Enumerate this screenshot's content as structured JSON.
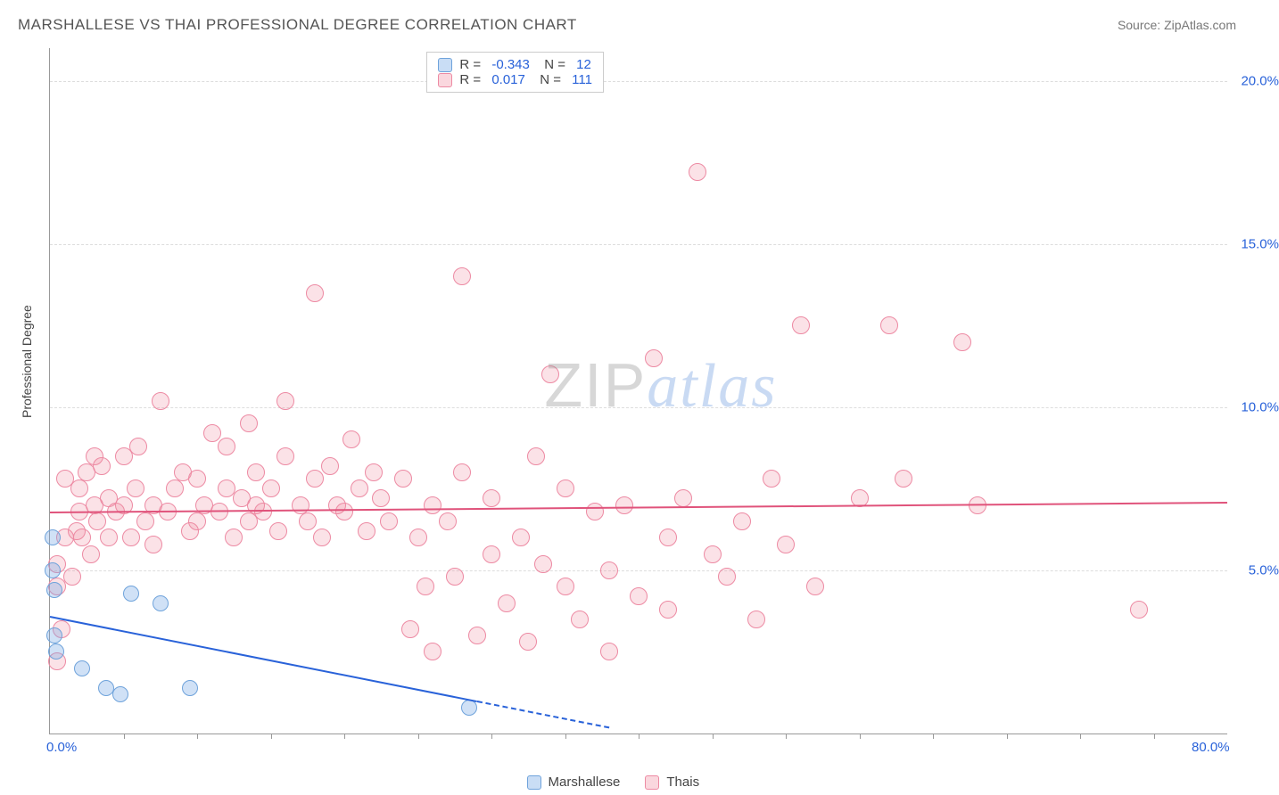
{
  "header": {
    "title": "MARSHALLESE VS THAI PROFESSIONAL DEGREE CORRELATION CHART",
    "source": "Source: ZipAtlas.com"
  },
  "chart": {
    "type": "scatter",
    "y_axis_label": "Professional Degree",
    "xlim": [
      0,
      80
    ],
    "ylim": [
      0,
      21
    ],
    "xtick_labels": [
      "0.0%",
      "80.0%"
    ],
    "xtick_positions_pct": [
      0,
      100
    ],
    "xtick_minor_pct": [
      6.25,
      12.5,
      18.75,
      25,
      31.25,
      37.5,
      43.75,
      50,
      56.25,
      62.5,
      68.75,
      75,
      81.25,
      87.5,
      93.75
    ],
    "ytick_labels": [
      "5.0%",
      "10.0%",
      "15.0%",
      "20.0%"
    ],
    "ytick_values": [
      5,
      10,
      15,
      20
    ],
    "grid_color": "#dddddd",
    "background_color": "#ffffff",
    "series": {
      "marshallese": {
        "label": "Marshallese",
        "color_fill": "rgba(120,170,230,0.35)",
        "color_stroke": "#6fa3db",
        "marker_radius": 9,
        "R": "-0.343",
        "N": "12",
        "trend": {
          "x1": 0,
          "y1": 3.6,
          "x2": 38,
          "y2": 0.2,
          "color": "#2962d9",
          "dash_after_x": 29
        },
        "points": [
          {
            "x": 0.2,
            "y": 6.0
          },
          {
            "x": 0.2,
            "y": 5.0
          },
          {
            "x": 0.3,
            "y": 4.4
          },
          {
            "x": 0.3,
            "y": 3.0
          },
          {
            "x": 2.2,
            "y": 2.0
          },
          {
            "x": 3.8,
            "y": 1.4
          },
          {
            "x": 4.8,
            "y": 1.2
          },
          {
            "x": 5.5,
            "y": 4.3
          },
          {
            "x": 7.5,
            "y": 4.0
          },
          {
            "x": 9.5,
            "y": 1.4
          },
          {
            "x": 0.4,
            "y": 2.5
          },
          {
            "x": 28.5,
            "y": 0.8
          }
        ]
      },
      "thais": {
        "label": "Thais",
        "color_fill": "rgba(240,140,160,0.25)",
        "color_stroke": "#ed8aa3",
        "marker_radius": 10,
        "R": "0.017",
        "N": "111",
        "trend": {
          "x1": 0,
          "y1": 6.8,
          "x2": 80,
          "y2": 7.1,
          "color": "#e0537b"
        },
        "points": [
          {
            "x": 0.5,
            "y": 4.5
          },
          {
            "x": 0.5,
            "y": 5.2
          },
          {
            "x": 0.8,
            "y": 3.2
          },
          {
            "x": 1,
            "y": 6.0
          },
          {
            "x": 1,
            "y": 7.8
          },
          {
            "x": 1.5,
            "y": 4.8
          },
          {
            "x": 1.8,
            "y": 6.2
          },
          {
            "x": 2,
            "y": 7.5
          },
          {
            "x": 2,
            "y": 6.8
          },
          {
            "x": 2.2,
            "y": 6.0
          },
          {
            "x": 2.5,
            "y": 8.0
          },
          {
            "x": 2.8,
            "y": 5.5
          },
          {
            "x": 3,
            "y": 7.0
          },
          {
            "x": 3,
            "y": 8.5
          },
          {
            "x": 3.2,
            "y": 6.5
          },
          {
            "x": 3.5,
            "y": 8.2
          },
          {
            "x": 4,
            "y": 7.2
          },
          {
            "x": 4,
            "y": 6.0
          },
          {
            "x": 4.5,
            "y": 6.8
          },
          {
            "x": 5,
            "y": 8.5
          },
          {
            "x": 5,
            "y": 7.0
          },
          {
            "x": 5.5,
            "y": 6.0
          },
          {
            "x": 5.8,
            "y": 7.5
          },
          {
            "x": 6,
            "y": 8.8
          },
          {
            "x": 6.5,
            "y": 6.5
          },
          {
            "x": 7,
            "y": 7.0
          },
          {
            "x": 7,
            "y": 5.8
          },
          {
            "x": 7.5,
            "y": 10.2
          },
          {
            "x": 8,
            "y": 6.8
          },
          {
            "x": 8.5,
            "y": 7.5
          },
          {
            "x": 9,
            "y": 8.0
          },
          {
            "x": 9.5,
            "y": 6.2
          },
          {
            "x": 10,
            "y": 7.8
          },
          {
            "x": 10,
            "y": 6.5
          },
          {
            "x": 10.5,
            "y": 7.0
          },
          {
            "x": 11,
            "y": 9.2
          },
          {
            "x": 11.5,
            "y": 6.8
          },
          {
            "x": 12,
            "y": 7.5
          },
          {
            "x": 12,
            "y": 8.8
          },
          {
            "x": 12.5,
            "y": 6.0
          },
          {
            "x": 13,
            "y": 7.2
          },
          {
            "x": 13.5,
            "y": 6.5
          },
          {
            "x": 13.5,
            "y": 9.5
          },
          {
            "x": 14,
            "y": 8.0
          },
          {
            "x": 14,
            "y": 7.0
          },
          {
            "x": 14.5,
            "y": 6.8
          },
          {
            "x": 15,
            "y": 7.5
          },
          {
            "x": 15.5,
            "y": 6.2
          },
          {
            "x": 16,
            "y": 8.5
          },
          {
            "x": 16,
            "y": 10.2
          },
          {
            "x": 17,
            "y": 7.0
          },
          {
            "x": 17.5,
            "y": 6.5
          },
          {
            "x": 18,
            "y": 7.8
          },
          {
            "x": 18,
            "y": 13.5
          },
          {
            "x": 18.5,
            "y": 6.0
          },
          {
            "x": 19,
            "y": 8.2
          },
          {
            "x": 19.5,
            "y": 7.0
          },
          {
            "x": 20,
            "y": 6.8
          },
          {
            "x": 20.5,
            "y": 9.0
          },
          {
            "x": 21,
            "y": 7.5
          },
          {
            "x": 21.5,
            "y": 6.2
          },
          {
            "x": 22,
            "y": 8.0
          },
          {
            "x": 22.5,
            "y": 7.2
          },
          {
            "x": 23,
            "y": 6.5
          },
          {
            "x": 24,
            "y": 7.8
          },
          {
            "x": 24.5,
            "y": 3.2
          },
          {
            "x": 25,
            "y": 6.0
          },
          {
            "x": 25.5,
            "y": 4.5
          },
          {
            "x": 26,
            "y": 7.0
          },
          {
            "x": 26,
            "y": 2.5
          },
          {
            "x": 27,
            "y": 6.5
          },
          {
            "x": 27.5,
            "y": 4.8
          },
          {
            "x": 28,
            "y": 8.0
          },
          {
            "x": 28,
            "y": 14.0
          },
          {
            "x": 29,
            "y": 3.0
          },
          {
            "x": 30,
            "y": 5.5
          },
          {
            "x": 30,
            "y": 7.2
          },
          {
            "x": 31,
            "y": 4.0
          },
          {
            "x": 32,
            "y": 6.0
          },
          {
            "x": 32.5,
            "y": 2.8
          },
          {
            "x": 33,
            "y": 8.5
          },
          {
            "x": 33.5,
            "y": 5.2
          },
          {
            "x": 34,
            "y": 11.0
          },
          {
            "x": 35,
            "y": 4.5
          },
          {
            "x": 35,
            "y": 7.5
          },
          {
            "x": 36,
            "y": 3.5
          },
          {
            "x": 37,
            "y": 6.8
          },
          {
            "x": 38,
            "y": 5.0
          },
          {
            "x": 38,
            "y": 2.5
          },
          {
            "x": 39,
            "y": 7.0
          },
          {
            "x": 40,
            "y": 4.2
          },
          {
            "x": 41,
            "y": 11.5
          },
          {
            "x": 42,
            "y": 6.0
          },
          {
            "x": 42,
            "y": 3.8
          },
          {
            "x": 43,
            "y": 7.2
          },
          {
            "x": 44,
            "y": 17.2
          },
          {
            "x": 45,
            "y": 5.5
          },
          {
            "x": 46,
            "y": 4.8
          },
          {
            "x": 47,
            "y": 6.5
          },
          {
            "x": 48,
            "y": 3.5
          },
          {
            "x": 49,
            "y": 7.8
          },
          {
            "x": 50,
            "y": 5.8
          },
          {
            "x": 51,
            "y": 12.5
          },
          {
            "x": 52,
            "y": 4.5
          },
          {
            "x": 55,
            "y": 7.2
          },
          {
            "x": 57,
            "y": 12.5
          },
          {
            "x": 58,
            "y": 7.8
          },
          {
            "x": 62,
            "y": 12.0
          },
          {
            "x": 63,
            "y": 7.0
          },
          {
            "x": 74,
            "y": 3.8
          },
          {
            "x": 0.5,
            "y": 2.2
          }
        ]
      }
    },
    "watermark": {
      "part1": "ZIP",
      "part2": "atlas"
    }
  },
  "legend": {
    "item1": "Marshallese",
    "item2": "Thais"
  }
}
